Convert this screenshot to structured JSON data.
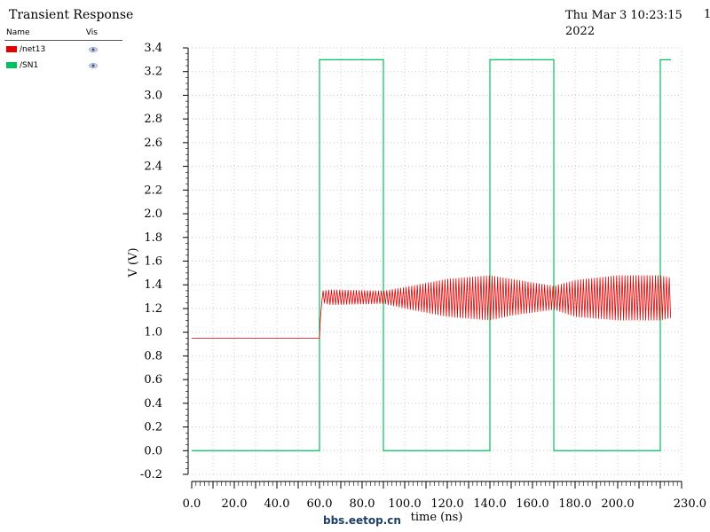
{
  "header": {
    "title": "Transient Response",
    "date": "Thu Mar 3 10:23:15 2022",
    "page_number": "1"
  },
  "legend": {
    "name_header": "Name",
    "vis_header": "Vis",
    "items": [
      {
        "name": "/net13",
        "color": "#e00000",
        "icon": "eye-icon"
      },
      {
        "name": "/SN1",
        "color": "#00c060",
        "icon": "eye-icon"
      }
    ]
  },
  "watermark": "bbs.eetop.cn",
  "chart_data": {
    "type": "line",
    "title": "Transient Response",
    "xlabel": "time (ns)",
    "ylabel": "V (V)",
    "xlim": [
      0,
      230
    ],
    "ylim": [
      -0.2,
      3.4
    ],
    "x_ticks": [
      "0.0",
      "20.0",
      "40.0",
      "60.0",
      "80.0",
      "100.0",
      "120.0",
      "140.0",
      "160.0",
      "180.0",
      "200.0",
      "230.0"
    ],
    "y_ticks": [
      "3.4",
      "3.2",
      "3.0",
      "2.8",
      "2.6",
      "2.4",
      "2.2",
      "2.0",
      "1.8",
      "1.6",
      "1.4",
      "1.2",
      "1.0",
      "0.8",
      "0.6",
      "0.4",
      "0.2",
      "0.0",
      "-0.2"
    ],
    "grid": true,
    "legend_position": "top-left",
    "series": [
      {
        "name": "/SN1",
        "color": "#00c060",
        "x": [
          0,
          60,
          60,
          90,
          90,
          140,
          140,
          170,
          170,
          220,
          220,
          225
        ],
        "y": [
          0,
          0,
          3.3,
          3.3,
          0,
          0,
          3.3,
          3.3,
          0,
          0,
          3.3,
          3.3
        ]
      },
      {
        "name": "/net13",
        "color": "#e00000",
        "baseline_x": [
          0,
          60
        ],
        "baseline_y": [
          0.95,
          0.95
        ],
        "envelope_x": [
          60,
          61,
          65,
          90,
          100,
          120,
          140,
          150,
          170,
          180,
          200,
          220,
          225
        ],
        "envelope_upper": [
          0.95,
          1.35,
          1.36,
          1.35,
          1.38,
          1.45,
          1.48,
          1.45,
          1.39,
          1.44,
          1.48,
          1.48,
          1.46
        ],
        "envelope_lower": [
          0.95,
          1.25,
          1.23,
          1.24,
          1.2,
          1.13,
          1.1,
          1.14,
          1.19,
          1.13,
          1.1,
          1.1,
          1.12
        ],
        "oscillation_period_ns": 1.3
      }
    ]
  }
}
